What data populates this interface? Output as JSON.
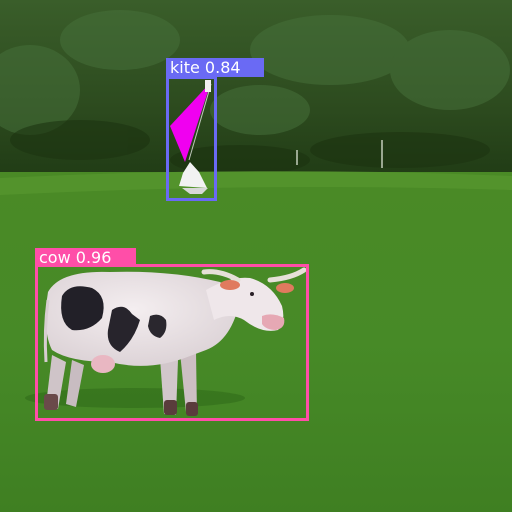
{
  "detections": [
    {
      "label": "kite",
      "score": "0.84",
      "color": "#6a6af4"
    },
    {
      "label": "cow",
      "score": "0.96",
      "color": "#ff4ea8"
    }
  ]
}
